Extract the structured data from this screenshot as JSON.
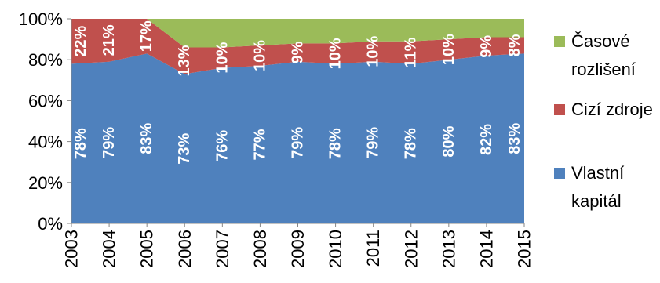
{
  "chart_data": {
    "type": "area",
    "stacked": true,
    "normalized_percent": true,
    "categories": [
      "2003",
      "2004",
      "2005",
      "2006",
      "2007",
      "2008",
      "2009",
      "2010",
      "2011",
      "2012",
      "2013",
      "2014",
      "2015"
    ],
    "series": [
      {
        "name": "Vlastní kapitál",
        "color": "#4F81BD",
        "values": [
          78,
          79,
          83,
          73,
          76,
          77,
          79,
          78,
          79,
          78,
          80,
          82,
          83
        ]
      },
      {
        "name": "Cizí zdroje",
        "color": "#C0504D",
        "values": [
          22,
          21,
          17,
          13,
          10,
          10,
          9,
          10,
          10,
          11,
          10,
          9,
          8
        ]
      },
      {
        "name": "Časové rozlišení",
        "color": "#9BBB59",
        "values": [
          0,
          0,
          0,
          14,
          14,
          13,
          12,
          12,
          11,
          11,
          10,
          9,
          9
        ]
      }
    ],
    "data_labels": {
      "Vlastní kapitál": [
        "78%",
        "79%",
        "83%",
        "73%",
        "76%",
        "77%",
        "79%",
        "78%",
        "79%",
        "78%",
        "80%",
        "82%",
        "83%"
      ],
      "Cizí zdroje": [
        "22%",
        "21%",
        "17%",
        "13%",
        "10%",
        "10%",
        "9%",
        "10%",
        "10%",
        "11%",
        "10%",
        "9%",
        "8%"
      ]
    },
    "ylim": [
      0,
      100
    ],
    "y_ticks": [
      "0%",
      "20%",
      "40%",
      "60%",
      "80%",
      "100%"
    ],
    "grid": false,
    "legend_position": "right",
    "legend": [
      {
        "lines": [
          "Časové",
          "rozlišení"
        ],
        "color": "#9BBB59"
      },
      {
        "lines": [
          "Cizí zdroje"
        ],
        "color": "#C0504D"
      },
      {
        "lines": [
          "Vlastní",
          "kapitál"
        ],
        "color": "#4F81BD"
      }
    ],
    "xlabel": "",
    "ylabel": "",
    "title": ""
  }
}
